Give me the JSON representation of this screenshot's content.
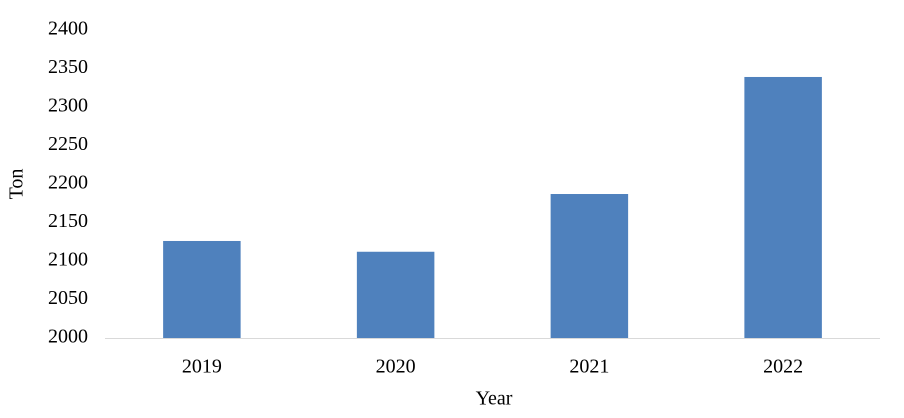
{
  "chart_data": {
    "type": "bar",
    "x_label": "Year",
    "y_label": "Ton",
    "categories": [
      "2019",
      "2020",
      "2021",
      "2022"
    ],
    "values": [
      2126,
      2112,
      2187,
      2339
    ],
    "color": "#4f81bd",
    "ylim": [
      2000,
      2400
    ],
    "yticks": [
      2000,
      2050,
      2100,
      2150,
      2200,
      2250,
      2300,
      2350,
      2400
    ],
    "grid": false
  }
}
